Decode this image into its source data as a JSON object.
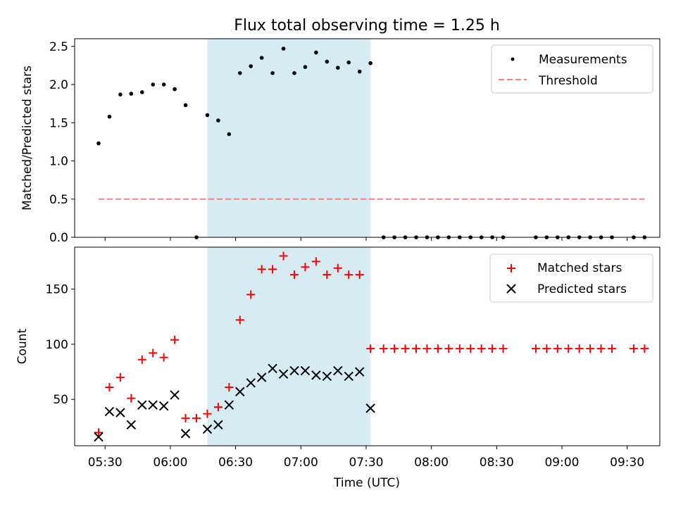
{
  "chart_data": [
    {
      "type": "scatter",
      "title": "Flux total observing time = 1.25 h",
      "xlabel": "",
      "ylabel": "Matched/Predicted stars",
      "x_unit": "time of day (UTC)",
      "ylim": [
        0,
        2.6
      ],
      "yticks": [
        "0.0",
        "0.5",
        "1.0",
        "1.5",
        "2.0",
        "2.5"
      ],
      "grid": false,
      "legend_position": "top-right",
      "shaded_interval": {
        "start": "06:17",
        "end": "07:32",
        "color": "#add8e6"
      },
      "series": [
        {
          "name": "Measurements",
          "marker": "dot",
          "color": "#000000",
          "points": [
            [
              "05:27",
              1.23
            ],
            [
              "05:32",
              1.58
            ],
            [
              "05:37",
              1.87
            ],
            [
              "05:42",
              1.88
            ],
            [
              "05:47",
              1.9
            ],
            [
              "05:52",
              2.0
            ],
            [
              "05:57",
              2.0
            ],
            [
              "06:02",
              1.94
            ],
            [
              "06:07",
              1.73
            ],
            [
              "06:12",
              0.0
            ],
            [
              "06:17",
              1.6
            ],
            [
              "06:22",
              1.53
            ],
            [
              "06:27",
              1.35
            ],
            [
              "06:32",
              2.15
            ],
            [
              "06:37",
              2.24
            ],
            [
              "06:42",
              2.35
            ],
            [
              "06:47",
              2.15
            ],
            [
              "06:52",
              2.47
            ],
            [
              "06:57",
              2.15
            ],
            [
              "07:02",
              2.23
            ],
            [
              "07:07",
              2.42
            ],
            [
              "07:12",
              2.3
            ],
            [
              "07:17",
              2.22
            ],
            [
              "07:22",
              2.29
            ],
            [
              "07:27",
              2.17
            ],
            [
              "07:32",
              2.28
            ],
            [
              "07:38",
              0
            ],
            [
              "07:43",
              0
            ],
            [
              "07:48",
              0
            ],
            [
              "07:53",
              0
            ],
            [
              "07:58",
              0
            ],
            [
              "08:03",
              0
            ],
            [
              "08:08",
              0
            ],
            [
              "08:13",
              0
            ],
            [
              "08:18",
              0
            ],
            [
              "08:23",
              0
            ],
            [
              "08:28",
              0
            ],
            [
              "08:33",
              0
            ],
            [
              "08:48",
              0
            ],
            [
              "08:53",
              0
            ],
            [
              "08:58",
              0
            ],
            [
              "09:03",
              0
            ],
            [
              "09:08",
              0
            ],
            [
              "09:13",
              0
            ],
            [
              "09:18",
              0
            ],
            [
              "09:23",
              0
            ],
            [
              "09:33",
              0
            ],
            [
              "09:38",
              0
            ]
          ]
        },
        {
          "name": "Threshold",
          "type": "line",
          "style": "dashed",
          "color": "#ff7f7f",
          "points": [
            [
              "05:27",
              0.5
            ],
            [
              "09:38",
              0.5
            ]
          ]
        }
      ]
    },
    {
      "type": "scatter",
      "title": "",
      "xlabel": "Time (UTC)",
      "ylabel": "Count",
      "ylim": [
        8,
        188
      ],
      "yticks": [
        "50",
        "100",
        "150"
      ],
      "xticks": [
        "05:30",
        "06:00",
        "06:30",
        "07:00",
        "07:30",
        "08:00",
        "08:30",
        "09:00",
        "09:30"
      ],
      "xlim": [
        "05:16",
        "09:45"
      ],
      "grid": false,
      "legend_position": "top-right",
      "shaded_interval": {
        "start": "06:17",
        "end": "07:32",
        "color": "#add8e6"
      },
      "series": [
        {
          "name": "Matched stars",
          "marker": "plus",
          "color": "#ff0000",
          "points": [
            [
              "05:27",
              20
            ],
            [
              "05:32",
              61
            ],
            [
              "05:37",
              70
            ],
            [
              "05:42",
              51
            ],
            [
              "05:47",
              86
            ],
            [
              "05:52",
              92
            ],
            [
              "05:57",
              88
            ],
            [
              "06:02",
              104
            ],
            [
              "06:07",
              33
            ],
            [
              "06:12",
              33
            ],
            [
              "06:17",
              37
            ],
            [
              "06:22",
              43
            ],
            [
              "06:27",
              61
            ],
            [
              "06:32",
              122
            ],
            [
              "06:37",
              145
            ],
            [
              "06:42",
              168
            ],
            [
              "06:47",
              168
            ],
            [
              "06:52",
              180
            ],
            [
              "06:57",
              163
            ],
            [
              "07:02",
              170
            ],
            [
              "07:07",
              175
            ],
            [
              "07:12",
              163
            ],
            [
              "07:17",
              169
            ],
            [
              "07:22",
              163
            ],
            [
              "07:27",
              163
            ],
            [
              "07:32",
              96
            ],
            [
              "07:38",
              96
            ],
            [
              "07:43",
              96
            ],
            [
              "07:48",
              96
            ],
            [
              "07:53",
              96
            ],
            [
              "07:58",
              96
            ],
            [
              "08:03",
              96
            ],
            [
              "08:08",
              96
            ],
            [
              "08:13",
              96
            ],
            [
              "08:18",
              96
            ],
            [
              "08:23",
              96
            ],
            [
              "08:28",
              96
            ],
            [
              "08:33",
              96
            ],
            [
              "08:48",
              96
            ],
            [
              "08:53",
              96
            ],
            [
              "08:58",
              96
            ],
            [
              "09:03",
              96
            ],
            [
              "09:08",
              96
            ],
            [
              "09:13",
              96
            ],
            [
              "09:18",
              96
            ],
            [
              "09:23",
              96
            ],
            [
              "09:33",
              96
            ],
            [
              "09:38",
              96
            ]
          ]
        },
        {
          "name": "Predicted stars",
          "marker": "x",
          "color": "#000000",
          "points": [
            [
              "05:27",
              16
            ],
            [
              "05:32",
              39
            ],
            [
              "05:37",
              38
            ],
            [
              "05:42",
              27
            ],
            [
              "05:47",
              45
            ],
            [
              "05:52",
              45
            ],
            [
              "05:57",
              44
            ],
            [
              "06:02",
              54
            ],
            [
              "06:07",
              19
            ],
            [
              "06:17",
              23
            ],
            [
              "06:22",
              27
            ],
            [
              "06:27",
              45
            ],
            [
              "06:32",
              57
            ],
            [
              "06:37",
              65
            ],
            [
              "06:42",
              70
            ],
            [
              "06:47",
              78
            ],
            [
              "06:52",
              73
            ],
            [
              "06:57",
              76
            ],
            [
              "07:02",
              76
            ],
            [
              "07:07",
              72
            ],
            [
              "07:12",
              71
            ],
            [
              "07:17",
              76
            ],
            [
              "07:22",
              71
            ],
            [
              "07:27",
              75
            ],
            [
              "07:32",
              42
            ]
          ]
        }
      ]
    }
  ]
}
